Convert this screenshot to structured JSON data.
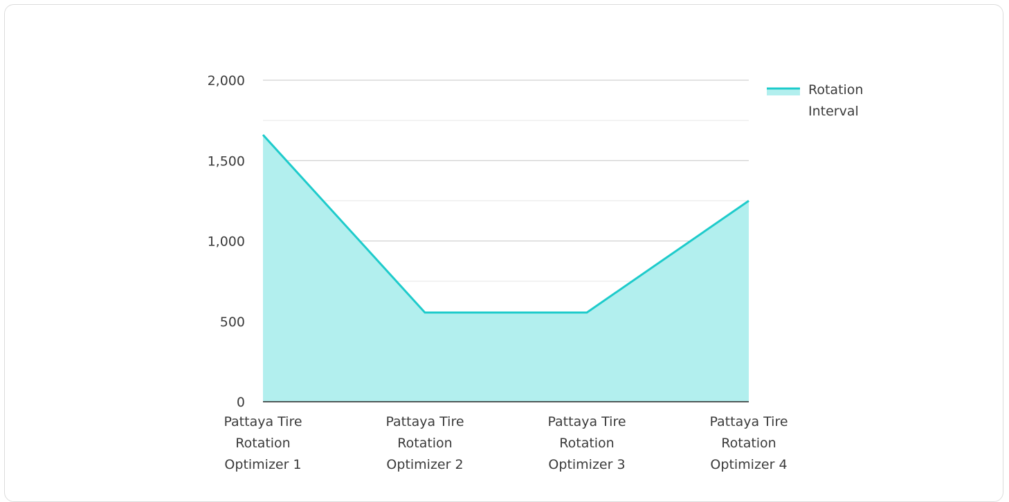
{
  "chart_data": {
    "type": "area",
    "title": "",
    "xlabel": "",
    "ylabel": "",
    "categories": [
      "Pattaya Tire Rotation Optimizer 1",
      "Pattaya Tire Rotation Optimizer 2",
      "Pattaya Tire Rotation Optimizer 3",
      "Pattaya Tire Rotation Optimizer 4"
    ],
    "series": [
      {
        "name": "Rotation Interval",
        "values": [
          1660,
          555,
          555,
          1250
        ],
        "line_color": "#1ecbcb",
        "fill_color": "#b2efee"
      }
    ],
    "ylim": [
      0,
      2000
    ],
    "yticks": [
      0,
      500,
      1000,
      1500,
      2000
    ],
    "ytick_labels": [
      "0",
      "500",
      "1,000",
      "1,500",
      "2,000"
    ],
    "grid": true,
    "legend_position": "top-right"
  }
}
